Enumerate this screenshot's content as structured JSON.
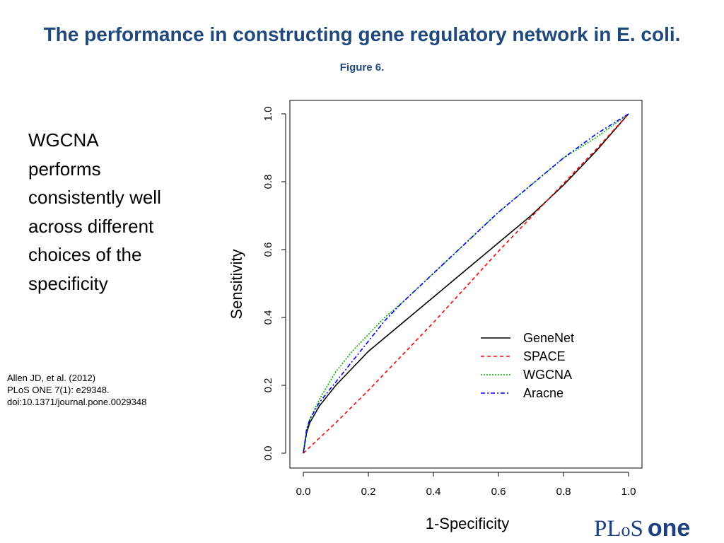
{
  "slide": {
    "title_main": "The performance in constructing gene regulatory network in E. coli.",
    "title_figure_ref": "Figure 6.",
    "body_lines": [
      "WGCNA",
      "performs",
      "consistently well",
      "across different",
      "choices of the",
      "specificity"
    ],
    "citation_lines": [
      "Allen JD, et al. (2012)",
      "PLoS ONE 7(1): e29348.",
      "doi:10.1371/journal.pone.0029348"
    ],
    "logo": {
      "text": "PLoS ONE",
      "part1": "PL",
      "part2": "o",
      "part3": "S",
      "part4": "one",
      "color": "#1b3f80"
    }
  },
  "chart_data": {
    "type": "line",
    "title": "",
    "xlabel": "1-Specificity",
    "ylabel": "Sensitivity",
    "xlim": [
      0,
      1
    ],
    "ylim": [
      0,
      1
    ],
    "x_ticks": [
      0.0,
      0.2,
      0.4,
      0.6,
      0.8,
      1.0
    ],
    "y_ticks": [
      0.0,
      0.2,
      0.4,
      0.6,
      0.8,
      1.0
    ],
    "x_tick_labels": [
      "0.0",
      "0.2",
      "0.4",
      "0.6",
      "0.8",
      "1.0"
    ],
    "y_tick_labels": [
      "0.0",
      "0.2",
      "0.4",
      "0.6",
      "0.8",
      "1.0"
    ],
    "grid": false,
    "legend_position": "bottom-right",
    "series": [
      {
        "name": "GeneNet",
        "color": "#000000",
        "dash": "solid",
        "x": [
          0.0,
          0.01,
          0.02,
          0.05,
          0.1,
          0.15,
          0.2,
          0.3,
          0.4,
          0.5,
          0.6,
          0.7,
          0.8,
          0.9,
          1.0
        ],
        "y": [
          0.0,
          0.06,
          0.09,
          0.14,
          0.2,
          0.25,
          0.3,
          0.38,
          0.46,
          0.54,
          0.62,
          0.7,
          0.79,
          0.89,
          1.0
        ]
      },
      {
        "name": "SPACE",
        "color": "#ff0000",
        "dash": "dashed",
        "x": [
          0.0,
          0.1,
          0.2,
          0.3,
          0.4,
          0.5,
          0.6,
          0.7,
          0.8,
          0.9,
          1.0
        ],
        "y": [
          0.0,
          0.09,
          0.185,
          0.285,
          0.385,
          0.49,
          0.595,
          0.695,
          0.795,
          0.895,
          1.0
        ]
      },
      {
        "name": "WGCNA",
        "color": "#00b000",
        "dash": "dotted",
        "x": [
          0.0,
          0.01,
          0.02,
          0.05,
          0.1,
          0.15,
          0.2,
          0.25,
          0.3,
          0.4,
          0.5,
          0.6,
          0.7,
          0.8,
          0.9,
          1.0
        ],
        "y": [
          0.0,
          0.07,
          0.1,
          0.16,
          0.24,
          0.3,
          0.35,
          0.4,
          0.44,
          0.53,
          0.62,
          0.71,
          0.79,
          0.87,
          0.93,
          1.0
        ]
      },
      {
        "name": "Aracne",
        "color": "#0000ff",
        "dash": "dashdot",
        "x": [
          0.0,
          0.01,
          0.02,
          0.05,
          0.1,
          0.15,
          0.2,
          0.25,
          0.3,
          0.4,
          0.5,
          0.6,
          0.7,
          0.8,
          0.9,
          1.0
        ],
        "y": [
          0.0,
          0.07,
          0.1,
          0.15,
          0.21,
          0.27,
          0.33,
          0.39,
          0.44,
          0.53,
          0.62,
          0.71,
          0.79,
          0.87,
          0.94,
          1.0
        ]
      }
    ]
  }
}
